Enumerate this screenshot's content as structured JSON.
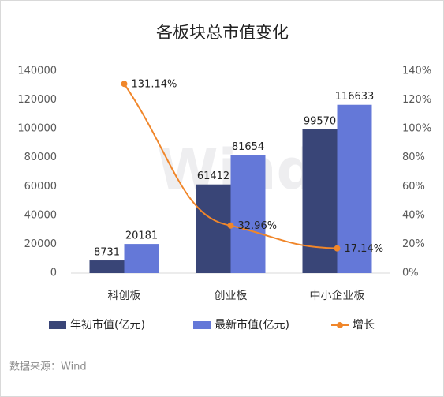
{
  "chart_data": {
    "type": "bar-line",
    "title": "各板块总市值变化",
    "categories": [
      "科创板",
      "创业板",
      "中小企业板"
    ],
    "series": [
      {
        "name": "年初市值(亿元)",
        "color": "#394577",
        "type": "bar",
        "values": [
          8731,
          61412,
          99570
        ]
      },
      {
        "name": "最新市值(亿元)",
        "color": "#6478d8",
        "type": "bar",
        "values": [
          20181,
          81654,
          116633
        ]
      },
      {
        "name": "增长",
        "color": "#f0862a",
        "type": "line",
        "axis": "y2",
        "values": [
          131.14,
          32.96,
          17.14
        ],
        "value_labels": [
          "131.14%",
          "32.96%",
          "17.14%"
        ]
      }
    ],
    "ylim": [
      0,
      140000
    ],
    "yticks": [
      0,
      20000,
      40000,
      60000,
      80000,
      100000,
      120000,
      140000
    ],
    "y2lim": [
      0,
      140
    ],
    "y2ticks": [
      {
        "value": 0,
        "label": "0%"
      },
      {
        "value": 20,
        "label": "20%"
      },
      {
        "value": 40,
        "label": "40%"
      },
      {
        "value": 60,
        "label": "60%"
      },
      {
        "value": 80,
        "label": "80%"
      },
      {
        "value": 100,
        "label": "100%"
      },
      {
        "value": 120,
        "label": "120%"
      },
      {
        "value": 140,
        "label": "140%"
      }
    ],
    "legend": "bottom",
    "watermark": "Wind",
    "source": "数据来源：Wind"
  }
}
